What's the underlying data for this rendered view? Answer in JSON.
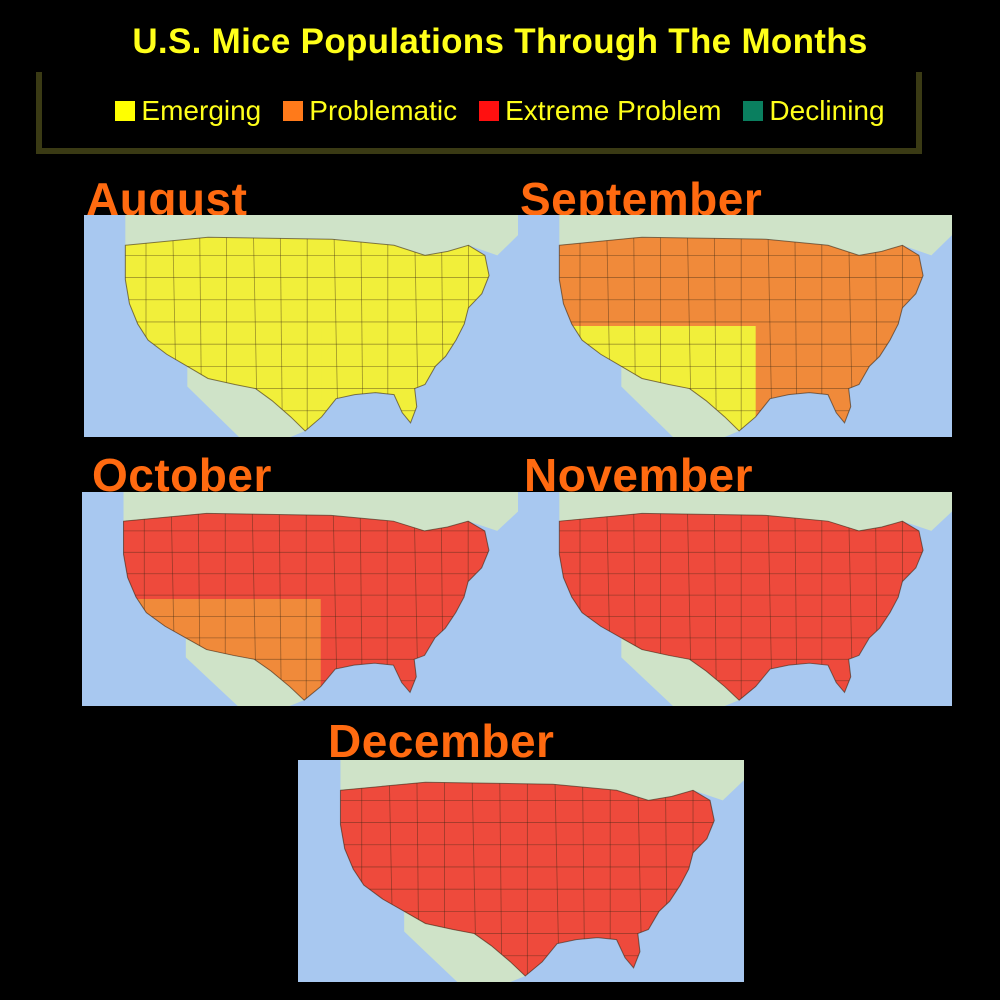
{
  "title": "U.S. Mice Populations Through The Months",
  "legend": [
    {
      "label": "Emerging",
      "color": "#ffff00"
    },
    {
      "label": "Problematic",
      "color": "#ff7a1a"
    },
    {
      "label": "Extreme Problem",
      "color": "#ff1010"
    },
    {
      "label": "Declining",
      "color": "#0a7f5f"
    }
  ],
  "panels": [
    {
      "month": "August",
      "west": "emerging",
      "southwest": "emerging",
      "east": "emerging"
    },
    {
      "month": "September",
      "west": "problematic",
      "southwest": "emerging",
      "east": "problematic"
    },
    {
      "month": "October",
      "west": "extreme",
      "southwest": "problematic",
      "east": "extreme"
    },
    {
      "month": "November",
      "west": "extreme",
      "southwest": "extreme",
      "east": "extreme"
    },
    {
      "month": "December",
      "west": "extreme",
      "southwest": "extreme",
      "east": "extreme"
    }
  ],
  "fill_colors": {
    "emerging": "#f1ef3a",
    "problematic": "#f08a3a",
    "extreme": "#ee4a3c"
  },
  "water_color": "#a8c8f0",
  "land_color": "#cfe3c8"
}
